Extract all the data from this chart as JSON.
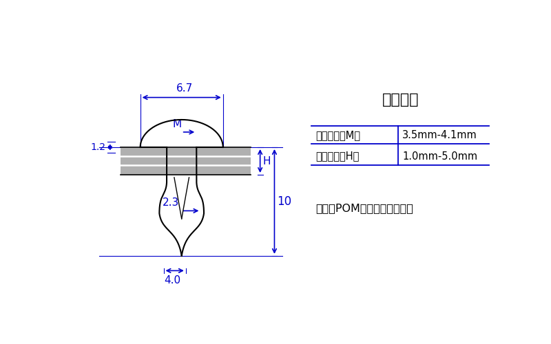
{
  "title": "施工参数",
  "table_rows": [
    {
      "label": "适合孔径（M）",
      "value": "3.5mm-4.1mm"
    },
    {
      "label": "适合板厚（H）",
      "value": "1.0mm-5.0mm"
    }
  ],
  "material_text": "材质；POM塑料（俗称赛钢）",
  "dim_67": "6.7",
  "dim_M": "M",
  "dim_12": "1.2",
  "dim_23": "2.3",
  "dim_H": "H",
  "dim_10": "10",
  "dim_40": "4.0",
  "blue_color": "#0000CC",
  "gray_color": "#b0b0b0",
  "black_color": "#000000",
  "bg_color": "#FFFFFF"
}
